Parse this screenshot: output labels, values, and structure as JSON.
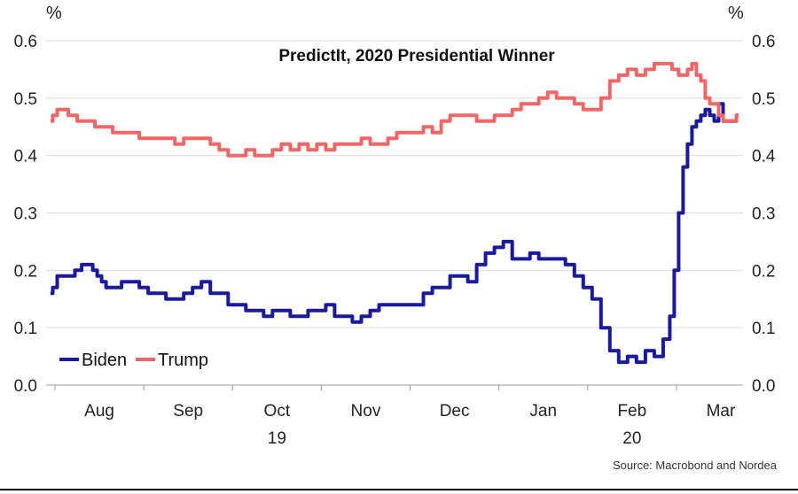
{
  "chart_data": {
    "type": "line",
    "title": "PredictIt, 2020 Presidential Winner",
    "ylabel_left": "%",
    "ylabel_right": "%",
    "ylim": [
      0,
      0.6
    ],
    "yticks": [
      "0.0",
      "0.1",
      "0.2",
      "0.3",
      "0.4",
      "0.5",
      "0.6"
    ],
    "xlim": [
      0,
      7.85
    ],
    "xticks": [
      {
        "label": "Aug",
        "pos": 0.6
      },
      {
        "label": "Sep",
        "pos": 1.6
      },
      {
        "label": "Oct",
        "pos": 2.6
      },
      {
        "label": "Nov",
        "pos": 3.6
      },
      {
        "label": "Dec",
        "pos": 4.6
      },
      {
        "label": "Jan",
        "pos": 5.6
      },
      {
        "label": "Feb",
        "pos": 6.6
      },
      {
        "label": "Mar",
        "pos": 7.6
      }
    ],
    "year_labels": [
      {
        "label": "19",
        "pos": 2.6
      },
      {
        "label": "20",
        "pos": 6.6
      }
    ],
    "series": [
      {
        "name": "Biden",
        "color": "#1a1a9c",
        "x": [
          0.05,
          0.1,
          0.15,
          0.2,
          0.3,
          0.35,
          0.45,
          0.5,
          0.55,
          0.6,
          0.65,
          0.7,
          0.8,
          0.9,
          1.0,
          1.1,
          1.2,
          1.3,
          1.4,
          1.5,
          1.6,
          1.7,
          1.8,
          1.9,
          2.0,
          2.1,
          2.2,
          2.3,
          2.4,
          2.5,
          2.6,
          2.7,
          2.8,
          2.9,
          3.0,
          3.1,
          3.2,
          3.3,
          3.4,
          3.5,
          3.6,
          3.7,
          3.8,
          3.9,
          4.0,
          4.1,
          4.2,
          4.3,
          4.4,
          4.5,
          4.6,
          4.7,
          4.8,
          4.9,
          5.0,
          5.1,
          5.2,
          5.3,
          5.4,
          5.5,
          5.6,
          5.7,
          5.8,
          5.9,
          6.0,
          6.1,
          6.2,
          6.3,
          6.4,
          6.5,
          6.6,
          6.7,
          6.8,
          6.9,
          7.0,
          7.05,
          7.1,
          7.15,
          7.2,
          7.25,
          7.3,
          7.35,
          7.4,
          7.45,
          7.5,
          7.55,
          7.6,
          7.65,
          7.7,
          7.75,
          7.8
        ],
        "values": [
          0.16,
          0.17,
          0.19,
          0.19,
          0.19,
          0.2,
          0.21,
          0.21,
          0.2,
          0.19,
          0.18,
          0.17,
          0.17,
          0.18,
          0.18,
          0.17,
          0.16,
          0.16,
          0.15,
          0.15,
          0.16,
          0.17,
          0.18,
          0.16,
          0.16,
          0.14,
          0.14,
          0.13,
          0.13,
          0.12,
          0.13,
          0.13,
          0.12,
          0.12,
          0.13,
          0.13,
          0.14,
          0.12,
          0.12,
          0.11,
          0.12,
          0.13,
          0.14,
          0.14,
          0.14,
          0.14,
          0.14,
          0.16,
          0.17,
          0.17,
          0.19,
          0.19,
          0.18,
          0.21,
          0.23,
          0.24,
          0.25,
          0.22,
          0.22,
          0.23,
          0.22,
          0.22,
          0.22,
          0.21,
          0.19,
          0.17,
          0.15,
          0.1,
          0.06,
          0.04,
          0.05,
          0.04,
          0.06,
          0.05,
          0.08,
          0.12,
          0.2,
          0.3,
          0.38,
          0.42,
          0.45,
          0.46,
          0.47,
          0.48,
          0.47,
          0.46,
          0.49,
          0.46,
          0.46,
          0.46,
          0.47
        ]
      },
      {
        "name": "Trump",
        "color": "#f06767",
        "x": [
          0.05,
          0.1,
          0.15,
          0.2,
          0.3,
          0.4,
          0.5,
          0.6,
          0.7,
          0.8,
          0.9,
          1.0,
          1.1,
          1.2,
          1.3,
          1.4,
          1.5,
          1.6,
          1.7,
          1.8,
          1.9,
          2.0,
          2.1,
          2.2,
          2.3,
          2.4,
          2.5,
          2.6,
          2.7,
          2.8,
          2.9,
          3.0,
          3.1,
          3.2,
          3.3,
          3.4,
          3.5,
          3.6,
          3.7,
          3.8,
          3.9,
          4.0,
          4.1,
          4.2,
          4.3,
          4.4,
          4.5,
          4.6,
          4.7,
          4.8,
          4.9,
          5.0,
          5.1,
          5.2,
          5.3,
          5.4,
          5.5,
          5.6,
          5.7,
          5.8,
          5.9,
          6.0,
          6.1,
          6.2,
          6.3,
          6.4,
          6.5,
          6.6,
          6.7,
          6.8,
          6.9,
          7.0,
          7.1,
          7.15,
          7.2,
          7.25,
          7.3,
          7.35,
          7.4,
          7.45,
          7.5,
          7.55,
          7.6,
          7.65,
          7.7,
          7.75,
          7.8
        ],
        "values": [
          0.46,
          0.47,
          0.48,
          0.48,
          0.47,
          0.46,
          0.46,
          0.45,
          0.45,
          0.44,
          0.44,
          0.44,
          0.43,
          0.43,
          0.43,
          0.43,
          0.42,
          0.43,
          0.43,
          0.43,
          0.42,
          0.41,
          0.4,
          0.4,
          0.41,
          0.4,
          0.4,
          0.41,
          0.42,
          0.41,
          0.42,
          0.41,
          0.42,
          0.41,
          0.42,
          0.42,
          0.42,
          0.43,
          0.42,
          0.42,
          0.43,
          0.44,
          0.44,
          0.44,
          0.45,
          0.44,
          0.46,
          0.47,
          0.47,
          0.47,
          0.46,
          0.46,
          0.47,
          0.47,
          0.48,
          0.49,
          0.49,
          0.5,
          0.51,
          0.5,
          0.5,
          0.49,
          0.48,
          0.48,
          0.5,
          0.53,
          0.54,
          0.55,
          0.54,
          0.55,
          0.56,
          0.56,
          0.55,
          0.54,
          0.54,
          0.55,
          0.56,
          0.54,
          0.53,
          0.5,
          0.49,
          0.49,
          0.47,
          0.46,
          0.46,
          0.46,
          0.47
        ]
      }
    ],
    "legend_position": "bottom-left",
    "source": "Source: Macrobond and Nordea"
  }
}
